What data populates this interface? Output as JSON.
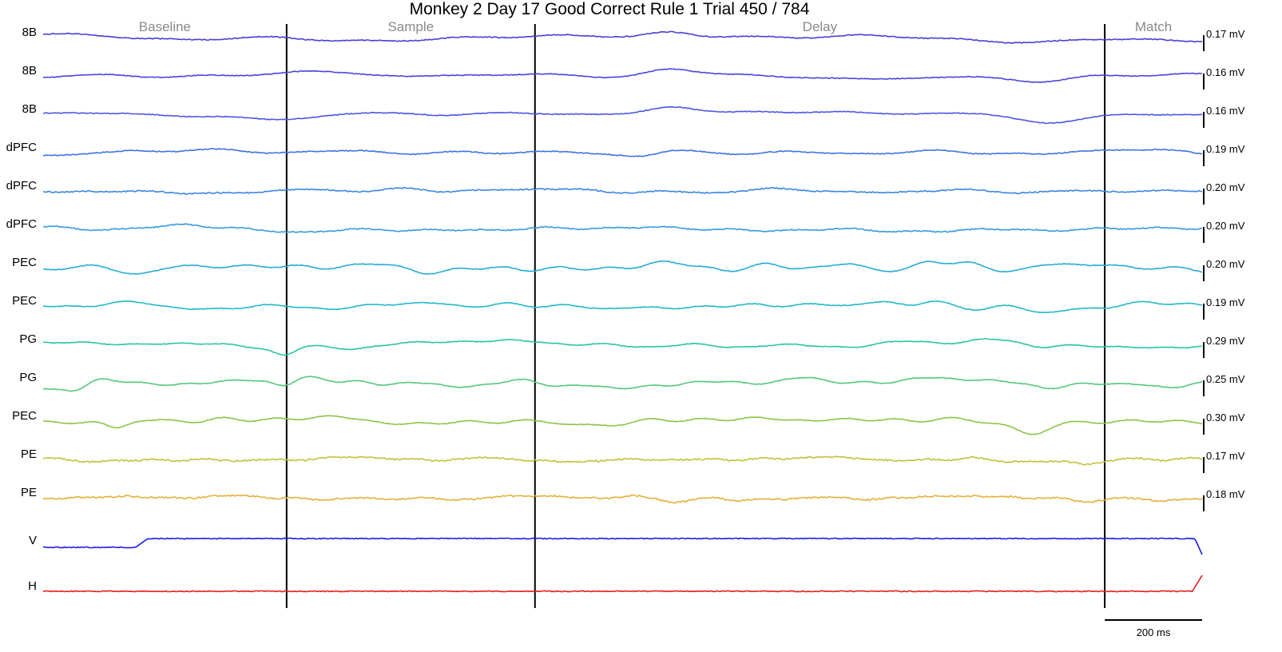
{
  "chart_data": {
    "type": "line",
    "title": "Monkey 2 Day 17 Good Correct Rule 1 Trial 450 / 784",
    "epochs": [
      "Baseline",
      "Sample",
      "Delay",
      "Match"
    ],
    "epoch_boundaries_ms": [
      500,
      1010,
      2180
    ],
    "time_range_ms": [
      0,
      2380
    ],
    "scale_bar": {
      "duration_ms": 200,
      "label": "200 ms"
    },
    "series": [
      {
        "name": "8B",
        "scale": "0.17 mV",
        "color": "#4a3fd6",
        "seed": 11,
        "amp": 4,
        "freq": 1.4,
        "noise": 1.2,
        "events": [
          [
            1290,
            60,
            -5
          ],
          [
            2050,
            90,
            6
          ]
        ]
      },
      {
        "name": "8B",
        "scale": "0.16 mV",
        "color": "#4b45dc",
        "seed": 12,
        "amp": 4,
        "freq": 1.4,
        "noise": 1.0,
        "events": [
          [
            1290,
            70,
            -9
          ],
          [
            2050,
            80,
            5
          ]
        ]
      },
      {
        "name": "8B",
        "scale": "0.16 mV",
        "color": "#4c56e2",
        "seed": 13,
        "amp": 4,
        "freq": 1.4,
        "noise": 1.0,
        "events": [
          [
            1290,
            70,
            -8
          ],
          [
            2050,
            80,
            5
          ]
        ]
      },
      {
        "name": "dPFC",
        "scale": "0.19 mV",
        "color": "#3f72e6",
        "seed": 21,
        "amp": 4,
        "freq": 1.8,
        "noise": 1.2,
        "events": [
          [
            1290,
            50,
            -6
          ],
          [
            2040,
            60,
            4
          ]
        ]
      },
      {
        "name": "dPFC",
        "scale": "0.20 mV",
        "color": "#3a86e4",
        "seed": 22,
        "amp": 4,
        "freq": 2.2,
        "noise": 1.6,
        "events": [
          [
            1470,
            60,
            -4
          ],
          [
            2050,
            80,
            5
          ]
        ]
      },
      {
        "name": "dPFC",
        "scale": "0.20 mV",
        "color": "#359ce0",
        "seed": 23,
        "amp": 4,
        "freq": 2.2,
        "noise": 1.4,
        "events": [
          [
            300,
            50,
            -4
          ],
          [
            2050,
            60,
            4
          ]
        ]
      },
      {
        "name": "PEC",
        "scale": "0.20 mV",
        "color": "#26acd6",
        "seed": 31,
        "amp": 7,
        "freq": 3.2,
        "noise": 0.8,
        "events": [
          [
            1820,
            40,
            -10
          ],
          [
            1650,
            40,
            -8
          ]
        ]
      },
      {
        "name": "PEC",
        "scale": "0.19 mV",
        "color": "#22b8c8",
        "seed": 32,
        "amp": 6,
        "freq": 3.0,
        "noise": 0.8,
        "events": [
          [
            1820,
            40,
            -8
          ],
          [
            2040,
            50,
            6
          ]
        ]
      },
      {
        "name": "PG",
        "scale": "0.29 mV",
        "color": "#2bc4a2",
        "seed": 41,
        "amp": 5,
        "freq": 2.4,
        "noise": 0.7,
        "events": [
          [
            495,
            30,
            10
          ],
          [
            2040,
            40,
            4
          ]
        ]
      },
      {
        "name": "PG",
        "scale": "0.25 mV",
        "color": "#55c77e",
        "seed": 42,
        "amp": 6,
        "freq": 2.6,
        "noise": 0.7,
        "events": [
          [
            70,
            30,
            7
          ],
          [
            495,
            30,
            7
          ],
          [
            700,
            40,
            7
          ]
        ]
      },
      {
        "name": "PEC",
        "scale": "0.30 mV",
        "color": "#8cc447",
        "seed": 51,
        "amp": 5,
        "freq": 2.6,
        "noise": 0.7,
        "events": [
          [
            150,
            30,
            10
          ],
          [
            2030,
            40,
            10
          ]
        ]
      },
      {
        "name": "PE",
        "scale": "0.17 mV",
        "color": "#c4c03a",
        "seed": 61,
        "amp": 3,
        "freq": 3.0,
        "noise": 2.0,
        "events": [
          [
            2150,
            40,
            6
          ]
        ]
      },
      {
        "name": "PE",
        "scale": "0.18 mV",
        "color": "#e5b03a",
        "seed": 62,
        "amp": 3,
        "freq": 3.0,
        "noise": 2.0,
        "events": [
          [
            1300,
            40,
            6
          ],
          [
            2150,
            40,
            6
          ]
        ]
      },
      {
        "name": "V",
        "scale": "",
        "color": "#1c1ce0",
        "kind": "eyeV"
      },
      {
        "name": "H",
        "scale": "",
        "color": "#e81c1c",
        "kind": "eyeH"
      }
    ]
  }
}
